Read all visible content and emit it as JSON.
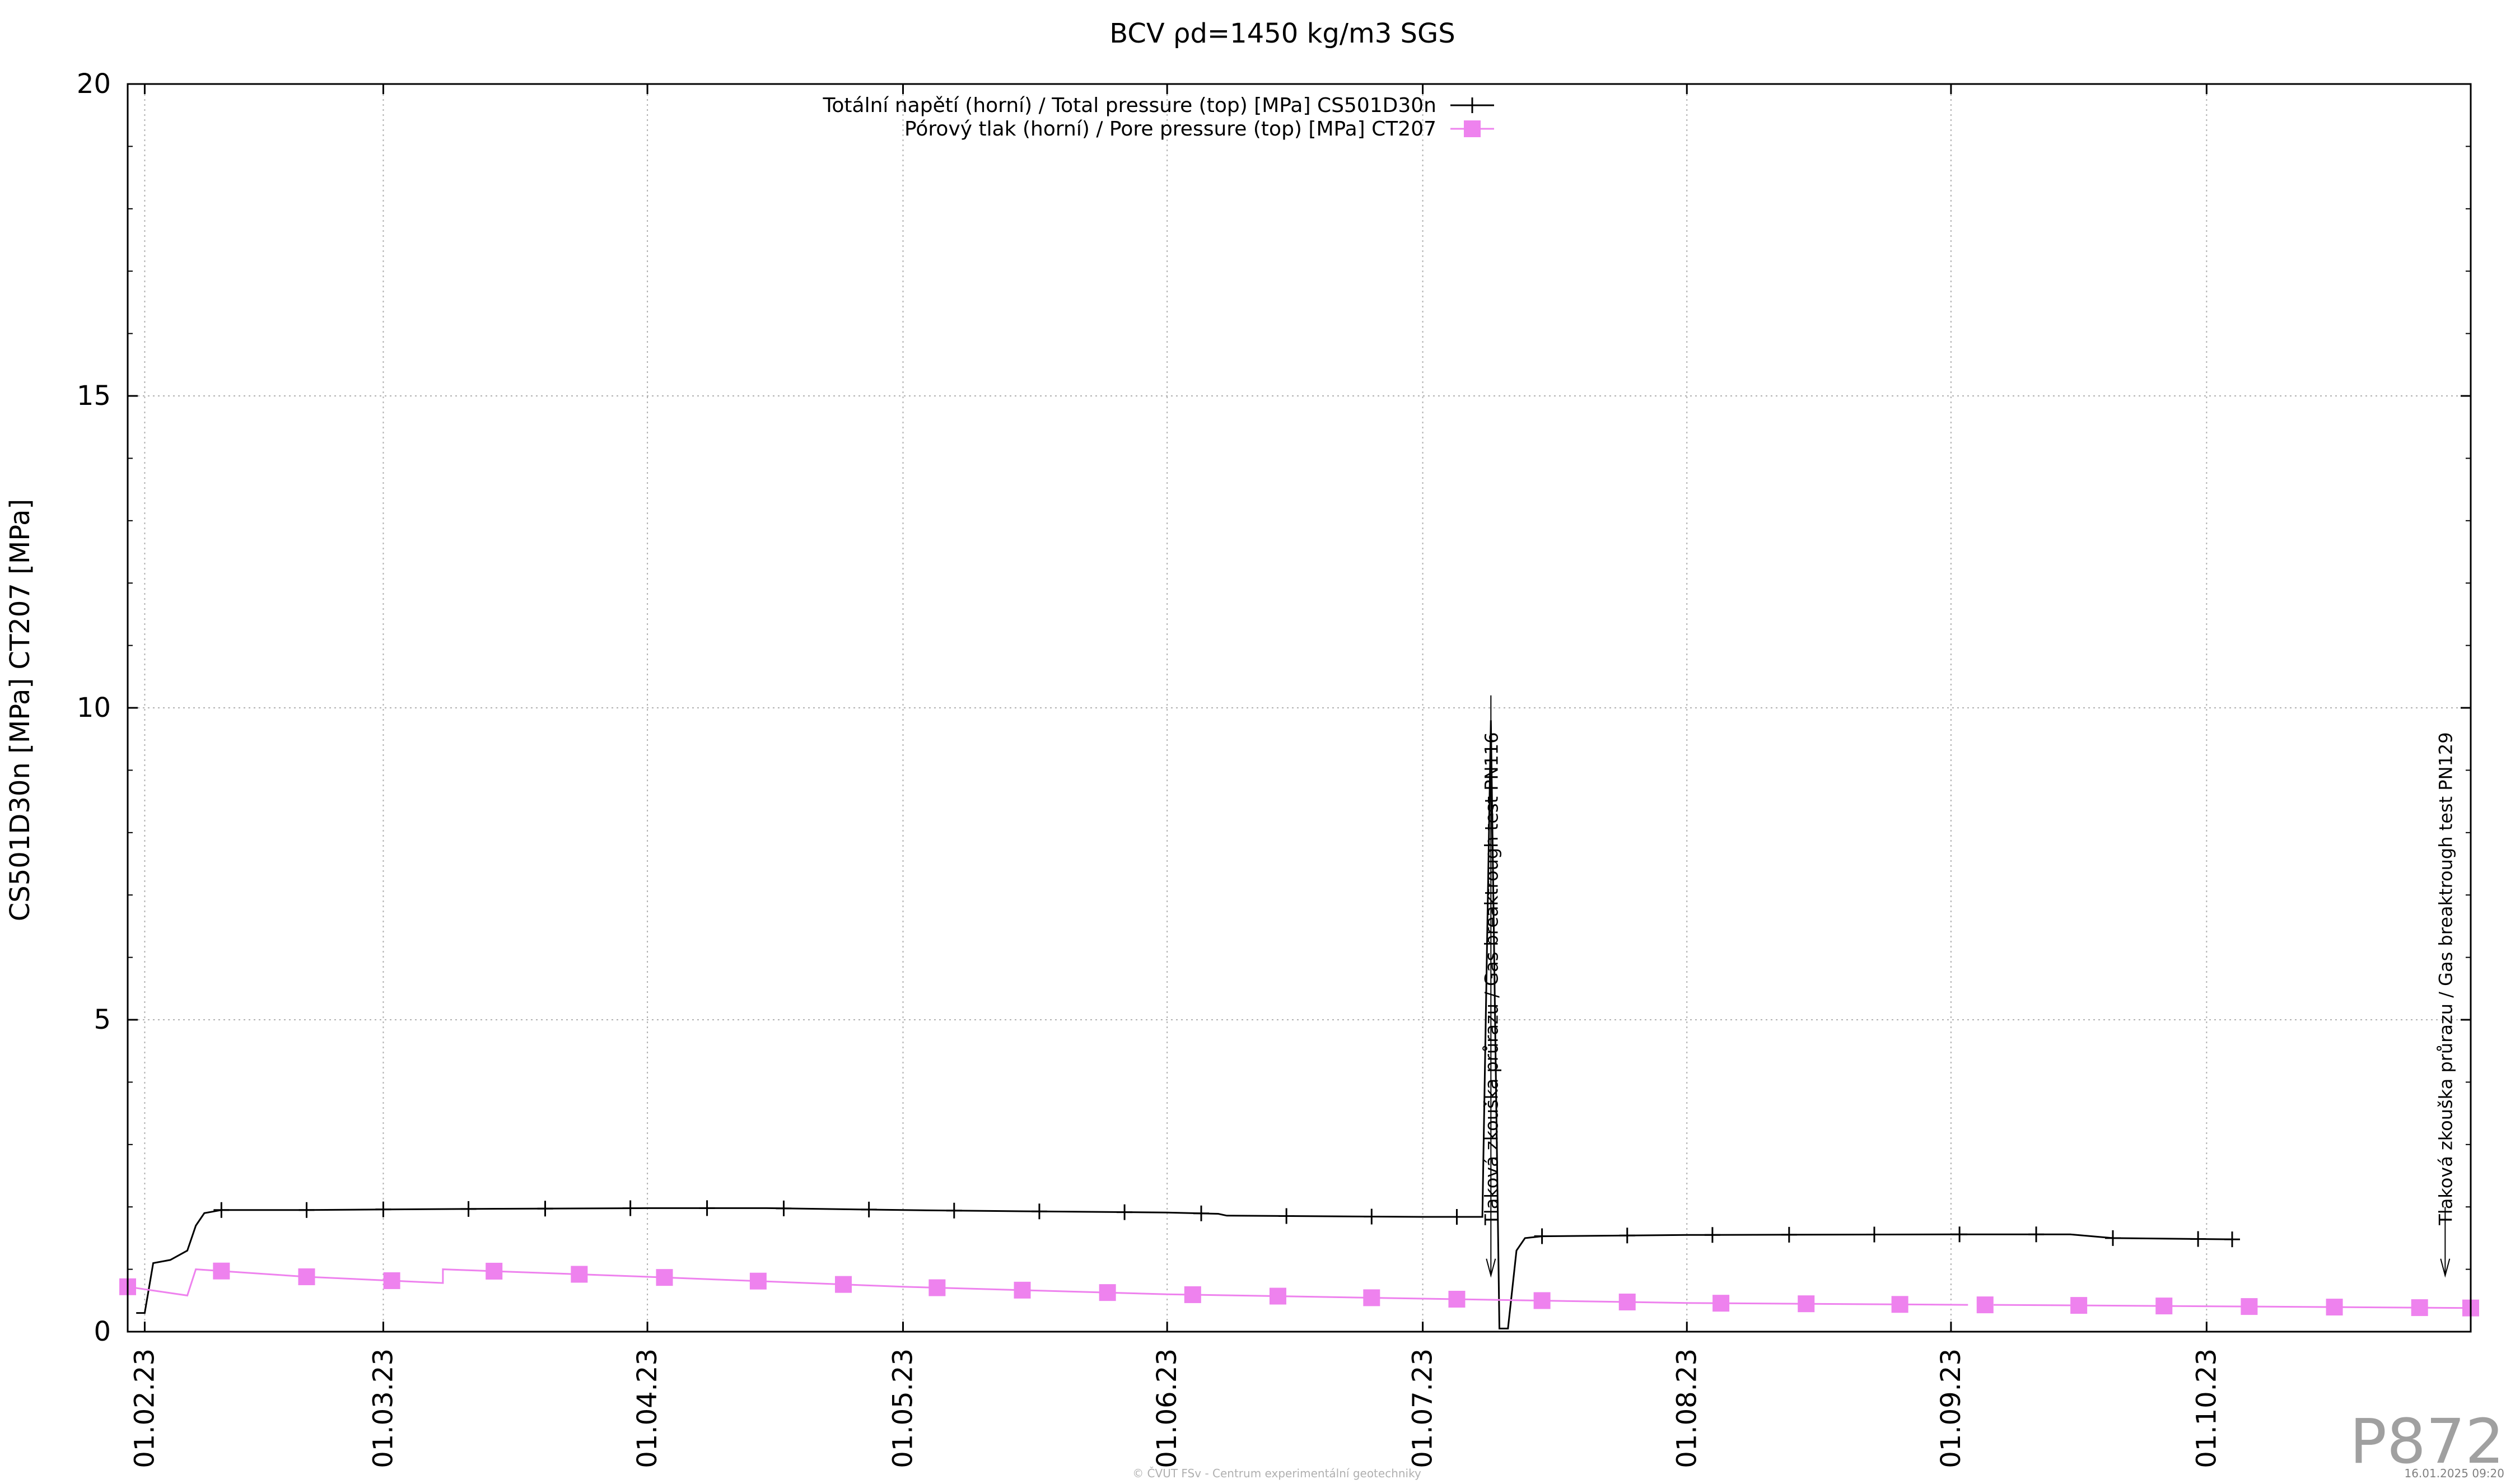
{
  "chart_data": {
    "type": "line",
    "title": "BCV ρd=1450 kg/m3 SGS",
    "ylabel": "CS501D30n [MPa] CT207 [MPa]",
    "ylim": [
      0,
      20
    ],
    "yticks": [
      "0",
      "5",
      "10",
      "15",
      "20"
    ],
    "xlim": [
      "2023-01-30",
      "2023-11-01"
    ],
    "xticks": [
      {
        "date": "2023-02-01",
        "label": "01.02.23"
      },
      {
        "date": "2023-03-01",
        "label": "01.03.23"
      },
      {
        "date": "2023-04-01",
        "label": "01.04.23"
      },
      {
        "date": "2023-05-01",
        "label": "01.05.23"
      },
      {
        "date": "2023-06-01",
        "label": "01.06.23"
      },
      {
        "date": "2023-07-01",
        "label": "01.07.23"
      },
      {
        "date": "2023-08-01",
        "label": "01.08.23"
      },
      {
        "date": "2023-09-01",
        "label": "01.09.23"
      },
      {
        "date": "2023-10-01",
        "label": "01.10.23"
      }
    ],
    "grid": true,
    "legend_position": "top-center",
    "series": [
      {
        "name": "Totální napětí (horní) / Total pressure (top) [MPa] CS501D30n",
        "color": "#000000",
        "marker": "plus",
        "points": [
          [
            "2023-01-31",
            0.3
          ],
          [
            "2023-02-01",
            0.3
          ],
          [
            "2023-02-02",
            1.1
          ],
          [
            "2023-02-04",
            1.15
          ],
          [
            "2023-02-06",
            1.3
          ],
          [
            "2023-02-07",
            1.7
          ],
          [
            "2023-02-08",
            1.9
          ],
          [
            "2023-02-10",
            1.95
          ],
          [
            "2023-02-20",
            1.95
          ],
          [
            "2023-03-01",
            1.96
          ],
          [
            "2023-03-15",
            1.97
          ],
          [
            "2023-04-01",
            1.98
          ],
          [
            "2023-04-15",
            1.98
          ],
          [
            "2023-05-01",
            1.95
          ],
          [
            "2023-05-15",
            1.93
          ],
          [
            "2023-06-01",
            1.91
          ],
          [
            "2023-06-07",
            1.89
          ],
          [
            "2023-06-08",
            1.86
          ],
          [
            "2023-07-01",
            1.84
          ],
          [
            "2023-07-08",
            1.84
          ],
          [
            "2023-07-09",
            9.8
          ],
          [
            "2023-07-10",
            0.05
          ],
          [
            "2023-07-11",
            0.05
          ],
          [
            "2023-07-12",
            1.3
          ],
          [
            "2023-07-13",
            1.5
          ],
          [
            "2023-07-15",
            1.53
          ],
          [
            "2023-08-01",
            1.55
          ],
          [
            "2023-09-01",
            1.56
          ],
          [
            "2023-09-15",
            1.56
          ],
          [
            "2023-09-20",
            1.5
          ],
          [
            "2023-10-04",
            1.48
          ]
        ],
        "marker_dates": [
          "2023-02-10",
          "2023-02-20",
          "2023-03-01",
          "2023-03-11",
          "2023-03-20",
          "2023-03-30",
          "2023-04-08",
          "2023-04-17",
          "2023-04-27",
          "2023-05-07",
          "2023-05-17",
          "2023-05-27",
          "2023-06-05",
          "2023-06-15",
          "2023-06-25",
          "2023-07-05",
          "2023-07-15",
          "2023-07-25",
          "2023-08-04",
          "2023-08-13",
          "2023-08-23",
          "2023-09-02",
          "2023-09-11",
          "2023-09-20",
          "2023-09-30",
          "2023-10-04"
        ]
      },
      {
        "name": "Pórový tlak (horní) / Pore pressure (top) [MPa] CT207",
        "color": "#ee82ee",
        "marker": "square",
        "points": [
          [
            "2023-01-30",
            0.72
          ],
          [
            "2023-02-06",
            0.58
          ],
          [
            "2023-02-07",
            1.0
          ],
          [
            "2023-02-20",
            0.88
          ],
          [
            "2023-03-08",
            0.78
          ],
          [
            "2023-03-08",
            1.0
          ],
          [
            "2023-04-01",
            0.88
          ],
          [
            "2023-05-01",
            0.72
          ],
          [
            "2023-06-01",
            0.6
          ],
          [
            "2023-07-01",
            0.53
          ],
          [
            "2023-08-01",
            0.46
          ],
          [
            "2023-09-03",
            0.43
          ],
          [
            "2023-09-06",
            null
          ],
          [
            "2023-09-06",
            0.43
          ],
          [
            "2023-11-01",
            0.38
          ]
        ],
        "marker_dates": [
          "2023-01-30",
          "2023-02-10",
          "2023-02-20",
          "2023-03-02",
          "2023-03-14",
          "2023-03-24",
          "2023-04-03",
          "2023-04-14",
          "2023-04-24",
          "2023-05-05",
          "2023-05-15",
          "2023-05-25",
          "2023-06-04",
          "2023-06-14",
          "2023-06-25",
          "2023-07-05",
          "2023-07-15",
          "2023-07-25",
          "2023-08-05",
          "2023-08-15",
          "2023-08-26",
          "2023-09-05",
          "2023-09-16",
          "2023-09-26",
          "2023-10-06",
          "2023-10-16",
          "2023-10-26",
          "2023-11-01"
        ]
      }
    ],
    "annotations": [
      {
        "date": "2023-07-09",
        "text": "Tlaková zkouška průrazu / Gas breaktrough test PN116",
        "y_from": 10.2,
        "y_to": 0.9
      },
      {
        "date": "2023-10-29",
        "text": "Tlaková zkouška průrazu / Gas breaktrough test PN129",
        "y_from": 2.0,
        "y_to": 0.9
      }
    ]
  },
  "watermark": "P872",
  "copyright": "© ČVUT FSv - Centrum experimentální geotechniky",
  "timestamp": "16.01.2025 09:20"
}
